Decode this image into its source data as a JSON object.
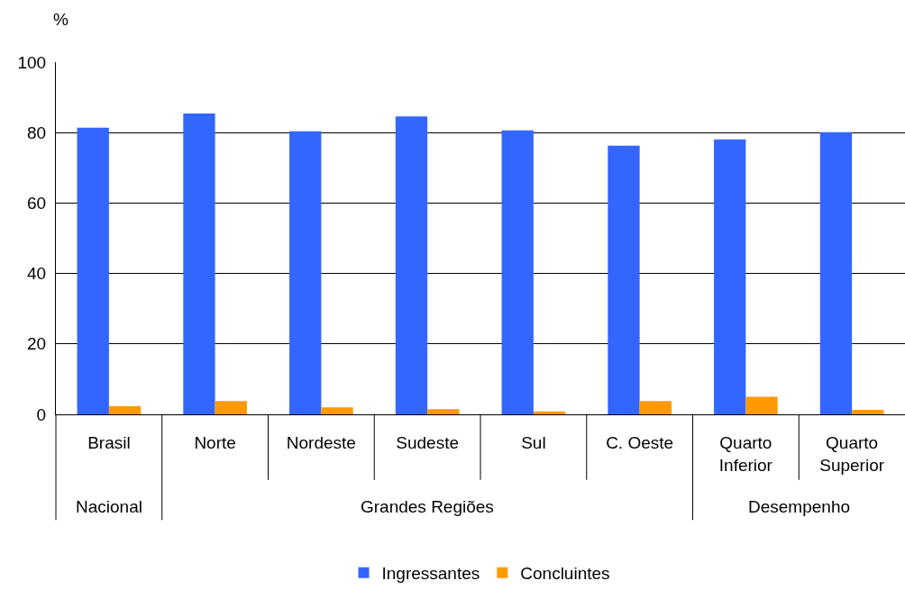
{
  "chart_data": {
    "type": "bar",
    "ylabel": "%",
    "categories": [
      "Brasil",
      "Norte",
      "Nordeste",
      "Sudeste",
      "Sul",
      "C. Oeste",
      "Quarto Inferior",
      "Quarto Superior"
    ],
    "series": [
      {
        "name": "Ingressantes",
        "color": "#3366ff",
        "values": [
          81.4,
          85.4,
          80.4,
          84.6,
          80.6,
          76.3,
          78.1,
          80.1
        ]
      },
      {
        "name": "Concluintes",
        "color": "#ff9900",
        "values": [
          2.3,
          3.8,
          2.0,
          1.5,
          0.8,
          3.8,
          5.0,
          1.3
        ]
      }
    ],
    "ylim": [
      0,
      100
    ],
    "yticks": [
      0,
      20,
      40,
      60,
      80,
      100
    ],
    "grid": "y",
    "legend": "bottom",
    "annotations": [
      "Nacional",
      "Grandes Regiões",
      "Desempenho"
    ]
  }
}
